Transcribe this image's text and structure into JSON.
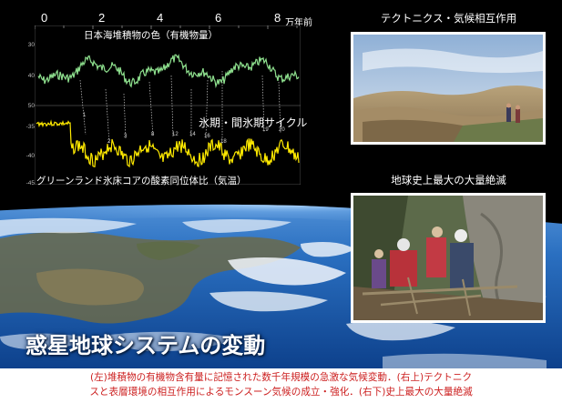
{
  "top_axis": {
    "ticks": [
      "0",
      "2",
      "4",
      "6",
      "8"
    ],
    "unit": "万年前"
  },
  "upper_plot": {
    "label": "日本海堆積物の色（有機物量）",
    "y_ticks": [
      "30",
      "40",
      "50"
    ]
  },
  "lower_plot": {
    "cycle_label": "氷期・間氷期サイクル",
    "label": "グリーンランド氷床コアの酸素同位体比（気温）",
    "y_ticks": [
      "-35",
      "-40",
      "-45"
    ],
    "cycle_numbers": [
      "1",
      "2",
      "3",
      "8",
      "12",
      "14",
      "16",
      "18",
      "19",
      "20"
    ]
  },
  "photo_top": {
    "title": "テクトニクス・気候相互作用"
  },
  "photo_bottom": {
    "title": "地球史上最大の大量絶滅"
  },
  "main_title": "惑星地球システムの変動",
  "caption": {
    "line1": "(左)堆積物の有機物含有量に記憶された数千年規模の急激な気候変動．(右上)テクトニク",
    "line2": "スと表層環境の相互作用によるモンスーン気候の成立・強化．(右下)史上最大の大量絶滅"
  },
  "colors": {
    "upper_series": "#8ee08e",
    "lower_series": "#ffea00",
    "caption_text": "#cc1f1f",
    "background": "#000000"
  }
}
